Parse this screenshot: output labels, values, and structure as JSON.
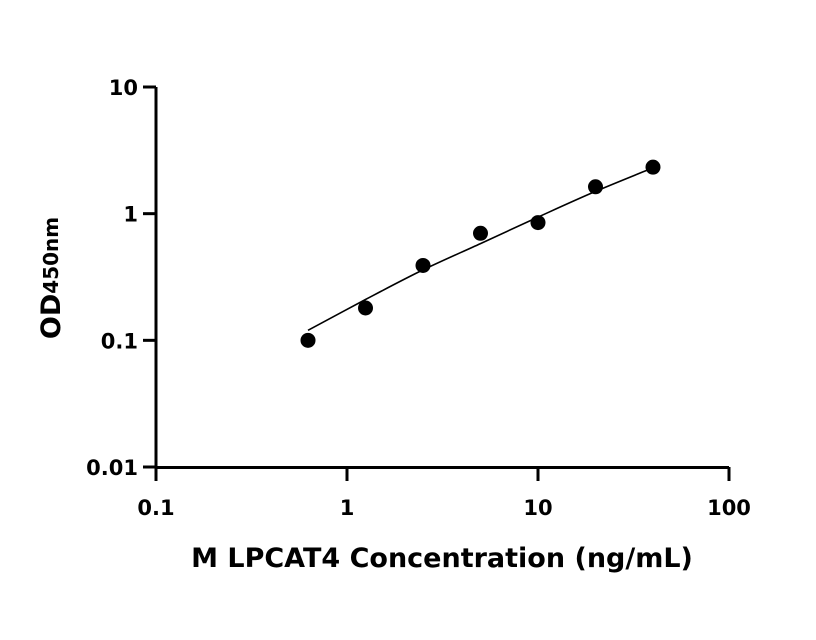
{
  "chart_data": {
    "type": "scatter",
    "xlabel": "M LPCAT4 Concentration (ng/mL)",
    "ylabel_main": "OD",
    "ylabel_sub": "450nm",
    "x_scale": "log",
    "y_scale": "log",
    "xlim": [
      0.1,
      100
    ],
    "ylim": [
      0.01,
      10
    ],
    "x_ticks": [
      0.1,
      1,
      10,
      100
    ],
    "x_tick_labels": [
      "0.1",
      "1",
      "10",
      "100"
    ],
    "y_ticks": [
      0.01,
      0.1,
      1,
      10
    ],
    "y_tick_labels": [
      "0.01",
      "0.1",
      "1",
      "10"
    ],
    "grid": false,
    "series": [
      {
        "points": [
          {
            "x": 0.625,
            "y": 0.1
          },
          {
            "x": 1.25,
            "y": 0.18
          },
          {
            "x": 2.5,
            "y": 0.39
          },
          {
            "x": 5,
            "y": 0.7
          },
          {
            "x": 10,
            "y": 0.85
          },
          {
            "x": 20,
            "y": 1.63
          },
          {
            "x": 40,
            "y": 2.33
          }
        ],
        "marker_color": "#000000"
      }
    ],
    "fit_curve": {
      "description": "fitted standard curve",
      "points": [
        {
          "x": 0.625,
          "y": 0.12
        },
        {
          "x": 1.25,
          "y": 0.21
        },
        {
          "x": 2.5,
          "y": 0.36
        },
        {
          "x": 5,
          "y": 0.58
        },
        {
          "x": 10,
          "y": 0.94
        },
        {
          "x": 20,
          "y": 1.5
        },
        {
          "x": 40,
          "y": 2.3
        }
      ],
      "color": "#000000"
    }
  }
}
